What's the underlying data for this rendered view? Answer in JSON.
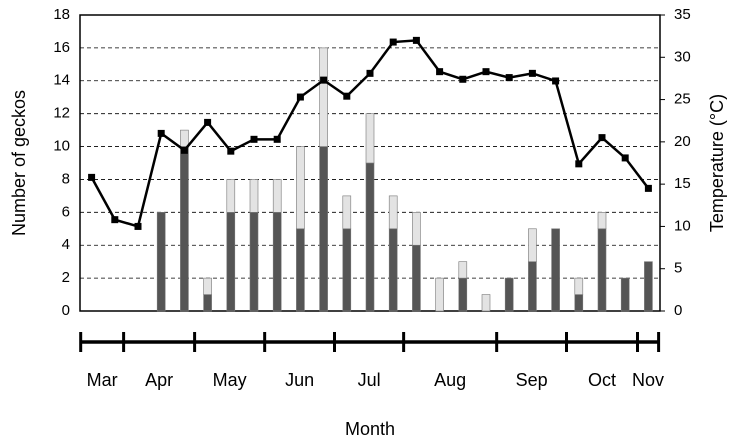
{
  "chart_data": {
    "type": "bar-line",
    "x": [
      0,
      1,
      2,
      3,
      4,
      5,
      6,
      7,
      8,
      9,
      10,
      11,
      12,
      13,
      14,
      15,
      16,
      17,
      18,
      19,
      20,
      21,
      22,
      23,
      24
    ],
    "xlim": [
      -0.5,
      24.5
    ],
    "series": [
      {
        "color": "#555555",
        "values": [
          0,
          0,
          0,
          6,
          10,
          1,
          6,
          6,
          6,
          5,
          10,
          5,
          9,
          5,
          4,
          0,
          2,
          0,
          2,
          3,
          5,
          1,
          5,
          2,
          3
        ]
      },
      {
        "color": "#e3e3e3",
        "values": [
          0,
          0,
          0,
          0,
          1,
          1,
          2,
          2,
          2,
          5,
          6,
          2,
          3,
          2,
          2,
          2,
          1,
          1,
          0,
          2,
          0,
          1,
          1,
          0,
          0
        ]
      },
      {
        "color": "#000000",
        "axis": "y2",
        "values": [
          15.8,
          10.8,
          10.0,
          21.0,
          19.0,
          22.3,
          18.9,
          20.3,
          20.3,
          25.3,
          27.3,
          25.4,
          28.1,
          31.8,
          32.0,
          28.3,
          27.4,
          28.3,
          27.6,
          28.1,
          27.2,
          17.4,
          20.5,
          18.1,
          14.5
        ]
      }
    ],
    "ylim": [
      0,
      18
    ],
    "yticks": [
      0,
      2,
      4,
      6,
      8,
      10,
      12,
      14,
      16,
      18
    ],
    "y2lim": [
      0,
      35
    ],
    "y2ticks": [
      0,
      5,
      10,
      15,
      20,
      25,
      30,
      35
    ],
    "grid": true,
    "ylabel": "Number of geckos",
    "y2label": "Temperature (°C)",
    "xlabel": "Month",
    "months": [
      "Mar",
      "Apr",
      "May",
      "Jun",
      "Jul",
      "Aug",
      "Sep",
      "Oct",
      "Nov"
    ],
    "month_ticks": [
      -0.47,
      1.38,
      4.44,
      7.46,
      10.47,
      13.45,
      17.46,
      20.47,
      23.53,
      24.44
    ]
  }
}
